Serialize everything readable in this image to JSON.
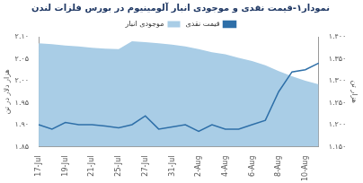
{
  "chart_data": {
    "type": "line",
    "title": "نمودار۱-قیمت نقدی و موجودی انبار آلومینیوم در بورس فلزات لندن",
    "y_label": "هزار دلار در تن",
    "y2_label": "هزار تن",
    "categories": [
      "17-Jul",
      null,
      "19-Jul",
      null,
      "21-Jul",
      null,
      "25-Jul",
      null,
      "27-Jul",
      null,
      "31-Jul",
      null,
      "2-Aug",
      null,
      "4-Aug",
      null,
      "6-Aug",
      null,
      "8-Aug",
      null,
      "10-Aug",
      null
    ],
    "series": [
      {
        "name": "قیمت نقدی",
        "type": "line",
        "color": "#2e6fa8",
        "values": [
          1.9,
          1.89,
          1.905,
          1.9,
          1.9,
          1.897,
          1.893,
          1.9,
          1.92,
          1.89,
          1.895,
          1.9,
          1.885,
          1.9,
          1.89,
          1.89,
          1.9,
          1.91,
          1.975,
          2.02,
          2.025,
          2.04
        ]
      },
      {
        "name": "موجودی انبار",
        "type": "area",
        "color": "#a9cde6",
        "axis": "y2",
        "values": [
          1385,
          1383,
          1380,
          1378,
          1375,
          1373,
          1372,
          1390,
          1388,
          1385,
          1382,
          1378,
          1372,
          1365,
          1360,
          1352,
          1345,
          1335,
          1322,
          1310,
          1300,
          1292
        ]
      }
    ],
    "ylim": [
      1.85,
      2.1
    ],
    "yticks": [
      {
        "value": 1.85,
        "label": "۱.۸۵"
      },
      {
        "value": 1.9,
        "label": "۱.۹۰"
      },
      {
        "value": 1.95,
        "label": "۱.۹۵"
      },
      {
        "value": 2.0,
        "label": "۲.۰۰"
      },
      {
        "value": 2.05,
        "label": "۲.۰۵"
      },
      {
        "value": 2.1,
        "label": "۲.۱۰"
      }
    ],
    "y2lim": [
      1150,
      1400
    ],
    "y2ticks": [
      {
        "value": 1150,
        "label": "۱.۱۵۰"
      },
      {
        "value": 1200,
        "label": "۱.۲۰۰"
      },
      {
        "value": 1250,
        "label": "۱.۲۵۰"
      },
      {
        "value": 1300,
        "label": "۱.۳۰۰"
      },
      {
        "value": 1350,
        "label": "۱.۳۵۰"
      },
      {
        "value": 1400,
        "label": "۱.۴۰۰"
      }
    ],
    "grid": false,
    "legend": "top"
  }
}
